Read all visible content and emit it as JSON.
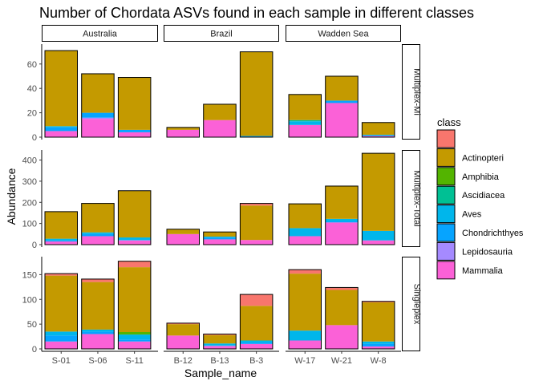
{
  "chart_data": {
    "type": "bar",
    "stacked": true,
    "faceted": true,
    "title": "Number of Chordata ASVs found in each sample in different classes",
    "xlabel": "Sample_name",
    "ylabel": "Abundance",
    "legend": {
      "title": "class",
      "placement": "right",
      "entries": [
        {
          "label": "",
          "color": "#F8766D"
        },
        {
          "label": "Actinopteri",
          "color": "#C49A00"
        },
        {
          "label": "Amphibia",
          "color": "#53B400"
        },
        {
          "label": "Ascidiacea",
          "color": "#00C094"
        },
        {
          "label": "Aves",
          "color": "#00B6EB"
        },
        {
          "label": "Chondrichthyes",
          "color": "#06A4FF"
        },
        {
          "label": "Lepidosauria",
          "color": "#A58AFF"
        },
        {
          "label": "Mammalia",
          "color": "#FB61D7"
        }
      ]
    },
    "column_facets": [
      {
        "label": "Australia",
        "samples": [
          "S-01",
          "S-06",
          "S-11"
        ]
      },
      {
        "label": "Brazil",
        "samples": [
          "B-12",
          "B-13",
          "B-3"
        ]
      },
      {
        "label": "Wadden Sea",
        "samples": [
          "W-17",
          "W-21",
          "W-8"
        ]
      }
    ],
    "row_facets": [
      {
        "label": "Multiplex-Mi",
        "ylim": [
          0,
          75
        ],
        "yticks": [
          0,
          20,
          40,
          60
        ],
        "bars": {
          "S-01": {
            "Mammalia": 5,
            "Aves": 1,
            "Chondrichthyes": 3,
            "Actinopteri": 62,
            "": 0
          },
          "S-06": {
            "Mammalia": 15,
            "Lepidosauria": 1,
            "Chondrichthyes": 4,
            "Actinopteri": 32,
            "": 0
          },
          "S-11": {
            "Mammalia": 4,
            "Chondrichthyes": 2,
            "Actinopteri": 43,
            "": 0
          },
          "B-12": {
            "Mammalia": 6,
            "Actinopteri": 2
          },
          "B-13": {
            "Mammalia": 14,
            "Actinopteri": 13
          },
          "B-3": {
            "Chondrichthyes": 1,
            "Actinopteri": 69
          },
          "W-17": {
            "Mammalia": 10,
            "Ascidiacea": 1,
            "Aves": 3,
            "Actinopteri": 21
          },
          "W-21": {
            "Mammalia": 28,
            "Chondrichthyes": 2,
            "Actinopteri": 20,
            "": 0
          },
          "W-8": {
            "Mammalia": 1,
            "Aves": 1,
            "Actinopteri": 10
          }
        }
      },
      {
        "label": "Multiplex-Total",
        "ylim": [
          0,
          440
        ],
        "yticks": [
          0,
          100,
          200,
          300,
          400
        ],
        "bars": {
          "S-01": {
            "Mammalia": 15,
            "Aves": 8,
            "Chondrichthyes": 5,
            "Actinopteri": 128
          },
          "S-06": {
            "Mammalia": 40,
            "Aves": 8,
            "Chondrichthyes": 10,
            "Actinopteri": 137
          },
          "S-11": {
            "Mammalia": 20,
            "Aves": 12,
            "Chondrichthyes": 2,
            "Actinopteri": 221
          },
          "B-12": {
            "Mammalia": 50,
            "Actinopteri": 23
          },
          "B-13": {
            "Mammalia": 25,
            "Chondrichthyes": 8,
            "Aves": 5,
            "Actinopteri": 22
          },
          "B-3": {
            "Mammalia": 22,
            "Actinopteri": 163,
            "": 10
          },
          "W-17": {
            "Mammalia": 40,
            "Aves": 38,
            "Actinopteri": 115
          },
          "W-21": {
            "Mammalia": 105,
            "Aves": 12,
            "Chondrichthyes": 5,
            "Actinopteri": 155
          },
          "W-8": {
            "Mammalia": 20,
            "Aves": 45,
            "Actinopteri": 367
          }
        }
      },
      {
        "label": "Singleplex",
        "ylim": [
          0,
          183
        ],
        "yticks": [
          0,
          50,
          100,
          150
        ],
        "bars": {
          "S-01": {
            "Mammalia": 15,
            "Chondrichthyes": 12,
            "Aves": 8,
            "Actinopteri": 113,
            "": 4
          },
          "S-06": {
            "Mammalia": 30,
            "Chondrichthyes": 5,
            "Aves": 4,
            "Actinopteri": 96,
            "": 6
          },
          "S-11": {
            "Mammalia": 15,
            "Aves": 10,
            "Chondrichthyes": 4,
            "Amphibia": 5,
            "Actinopteri": 131,
            "": 12
          },
          "B-12": {
            "Mammalia": 27,
            "Actinopteri": 23,
            "": 2
          },
          "B-13": {
            "Mammalia": 6,
            "Aves": 4,
            "Chondrichthyes": 1,
            "Actinopteri": 17,
            "": 2
          },
          "B-3": {
            "Mammalia": 10,
            "Aves": 4,
            "Chondrichthyes": 3,
            "Actinopteri": 70,
            "": 23
          },
          "W-17": {
            "Mammalia": 17,
            "Aves": 20,
            "Actinopteri": 115,
            "": 8
          },
          "W-21": {
            "Mammalia": 48,
            "Actinopteri": 71,
            "": 5
          },
          "W-8": {
            "Mammalia": 5,
            "Chondrichthyes": 5,
            "Aves": 5,
            "Actinopteri": 79,
            "": 2
          }
        }
      }
    ],
    "stack_order": [
      "Mammalia",
      "Lepidosauria",
      "Chondrichthyes",
      "Aves",
      "Ascidiacea",
      "Amphibia",
      "Actinopteri",
      ""
    ],
    "grid": false
  }
}
